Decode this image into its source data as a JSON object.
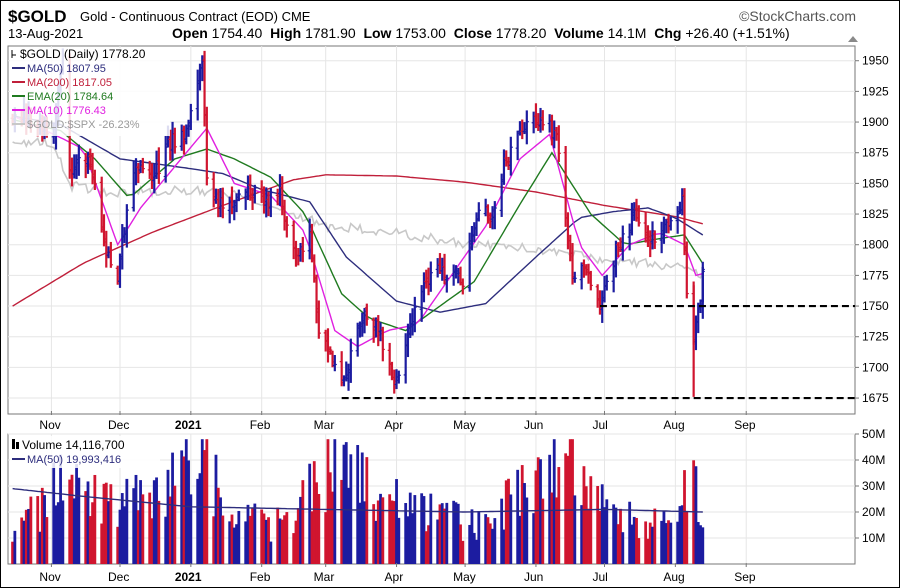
{
  "header": {
    "symbol": "$GOLD",
    "description": "Gold - Continuous Contract (EOD)",
    "exchange": "CME",
    "brand": "©StockCharts.com",
    "date": "13-Aug-2021",
    "open_label": "Open",
    "open": "1754.40",
    "high_label": "High",
    "high": "1781.90",
    "low_label": "Low",
    "low": "1753.00",
    "close_label": "Close",
    "close": "1778.20",
    "volume_label": "Volume",
    "volume": "14.1M",
    "chg_label": "Chg",
    "chg": "+26.40 (+1.51%)"
  },
  "legend": {
    "price": "$GOLD (Daily) 1778.20",
    "ma50": "MA(50) 1807.95",
    "ma200": "MA(200) 1817.05",
    "ema20": "EMA(20) 1784.64",
    "ma10": "MA(10) 1776.43",
    "ratio": "$GOLD:$SPX -26.23%",
    "volume": "Volume 14,116,700",
    "vol_ma50": "MA(50) 19,993,416"
  },
  "colors": {
    "up": "#1c1ca0",
    "down": "#d0152f",
    "ma50": "#2d2d7d",
    "ma200": "#c01f3a",
    "ema20": "#1f7a1f",
    "ma10": "#e020e0",
    "ratio": "#c8c8c8"
  },
  "chart_data": [
    {
      "type": "line",
      "title": "$GOLD (Daily)",
      "x_axis": {
        "tick_labels": [
          "Nov",
          "Dec",
          "2021",
          "Feb",
          "Mar",
          "Apr",
          "May",
          "Jun",
          "Jul",
          "Aug",
          "Sep"
        ]
      },
      "y_axis": {
        "ticks": [
          1675,
          1700,
          1725,
          1750,
          1775,
          1800,
          1825,
          1850,
          1875,
          1900,
          1925,
          1950
        ],
        "range": [
          1662,
          1962
        ]
      },
      "series": [
        {
          "name": "$GOLD (Daily)",
          "style": "bars",
          "anchors": [
            [
              "2020-10-15",
              1905
            ],
            [
              "2020-10-22",
              1905
            ],
            [
              "2020-11-02",
              1890
            ],
            [
              "2020-11-06",
              1950
            ],
            [
              "2020-11-09",
              1860
            ],
            [
              "2020-11-18",
              1870
            ],
            [
              "2020-11-24",
              1800
            ],
            [
              "2020-11-30",
              1776
            ],
            [
              "2020-12-07",
              1865
            ],
            [
              "2020-12-16",
              1855
            ],
            [
              "2020-12-21",
              1880
            ],
            [
              "2020-12-31",
              1893
            ],
            [
              "2021-01-06",
              1953
            ],
            [
              "2021-01-08",
              1850
            ],
            [
              "2021-01-15",
              1830
            ],
            [
              "2021-01-27",
              1845
            ],
            [
              "2021-02-04",
              1835
            ],
            [
              "2021-02-09",
              1840
            ],
            [
              "2021-02-16",
              1792
            ],
            [
              "2021-02-22",
              1808
            ],
            [
              "2021-02-26",
              1730
            ],
            [
              "2021-03-05",
              1698
            ],
            [
              "2021-03-08",
              1683
            ],
            [
              "2021-03-15",
              1730
            ],
            [
              "2021-03-19",
              1745
            ],
            [
              "2021-03-24",
              1730
            ],
            [
              "2021-03-31",
              1685
            ],
            [
              "2021-04-09",
              1745
            ],
            [
              "2021-04-16",
              1775
            ],
            [
              "2021-04-26",
              1780
            ],
            [
              "2021-04-30",
              1768
            ],
            [
              "2021-05-07",
              1830
            ],
            [
              "2021-05-12",
              1820
            ],
            [
              "2021-05-18",
              1865
            ],
            [
              "2021-05-26",
              1898
            ],
            [
              "2021-06-01",
              1903
            ],
            [
              "2021-06-10",
              1890
            ],
            [
              "2021-06-17",
              1775
            ],
            [
              "2021-06-22",
              1778
            ],
            [
              "2021-06-29",
              1752
            ],
            [
              "2021-07-06",
              1795
            ],
            [
              "2021-07-15",
              1828
            ],
            [
              "2021-07-21",
              1803
            ],
            [
              "2021-07-30",
              1815
            ],
            [
              "2021-08-04",
              1835
            ],
            [
              "2021-08-06",
              1762
            ],
            [
              "2021-08-09",
              1728
            ],
            [
              "2021-08-12",
              1752
            ],
            [
              "2021-08-13",
              1778.2
            ]
          ]
        },
        {
          "name": "MA(50)",
          "anchors": [
            [
              "2020-10-15",
              1905
            ],
            [
              "2020-11-05",
              1898
            ],
            [
              "2020-12-01",
              1870
            ],
            [
              "2021-01-01",
              1862
            ],
            [
              "2021-01-15",
              1858
            ],
            [
              "2021-02-01",
              1845
            ],
            [
              "2021-02-22",
              1835
            ],
            [
              "2021-03-10",
              1790
            ],
            [
              "2021-04-01",
              1754
            ],
            [
              "2021-04-20",
              1745
            ],
            [
              "2021-05-10",
              1752
            ],
            [
              "2021-06-01",
              1790
            ],
            [
              "2021-06-20",
              1822
            ],
            [
              "2021-07-05",
              1827
            ],
            [
              "2021-07-20",
              1830
            ],
            [
              "2021-08-01",
              1822
            ],
            [
              "2021-08-13",
              1807.95
            ]
          ]
        },
        {
          "name": "MA(200)",
          "anchors": [
            [
              "2020-10-15",
              1750
            ],
            [
              "2020-11-15",
              1785
            ],
            [
              "2020-12-15",
              1810
            ],
            [
              "2021-01-15",
              1832
            ],
            [
              "2021-02-15",
              1853
            ],
            [
              "2021-03-01",
              1857
            ],
            [
              "2021-04-01",
              1856
            ],
            [
              "2021-05-01",
              1851
            ],
            [
              "2021-06-01",
              1843
            ],
            [
              "2021-07-01",
              1832
            ],
            [
              "2021-08-01",
              1823
            ],
            [
              "2021-08-13",
              1817.05
            ]
          ]
        },
        {
          "name": "EMA(20)",
          "anchors": [
            [
              "2020-10-15",
              1902
            ],
            [
              "2020-11-05",
              1893
            ],
            [
              "2020-11-20",
              1870
            ],
            [
              "2020-12-05",
              1838
            ],
            [
              "2020-12-25",
              1870
            ],
            [
              "2021-01-08",
              1878
            ],
            [
              "2021-01-20",
              1870
            ],
            [
              "2021-02-05",
              1855
            ],
            [
              "2021-02-20",
              1825
            ],
            [
              "2021-03-08",
              1760
            ],
            [
              "2021-03-20",
              1740
            ],
            [
              "2021-04-05",
              1730
            ],
            [
              "2021-04-20",
              1750
            ],
            [
              "2021-05-05",
              1770
            ],
            [
              "2021-05-25",
              1833
            ],
            [
              "2021-06-08",
              1875
            ],
            [
              "2021-06-25",
              1825
            ],
            [
              "2021-07-10",
              1800
            ],
            [
              "2021-07-25",
              1805
            ],
            [
              "2021-08-05",
              1808
            ],
            [
              "2021-08-13",
              1784.64
            ]
          ]
        },
        {
          "name": "MA(10)",
          "anchors": [
            [
              "2020-10-15",
              1905
            ],
            [
              "2020-11-02",
              1890
            ],
            [
              "2020-11-15",
              1878
            ],
            [
              "2020-11-30",
              1800
            ],
            [
              "2020-12-10",
              1830
            ],
            [
              "2020-12-30",
              1875
            ],
            [
              "2021-01-08",
              1895
            ],
            [
              "2021-01-20",
              1850
            ],
            [
              "2021-02-05",
              1840
            ],
            [
              "2021-02-20",
              1810
            ],
            [
              "2021-03-05",
              1730
            ],
            [
              "2021-03-15",
              1717
            ],
            [
              "2021-03-28",
              1730
            ],
            [
              "2021-04-10",
              1735
            ],
            [
              "2021-04-25",
              1775
            ],
            [
              "2021-05-10",
              1815
            ],
            [
              "2021-05-25",
              1870
            ],
            [
              "2021-06-07",
              1890
            ],
            [
              "2021-06-20",
              1800
            ],
            [
              "2021-06-30",
              1775
            ],
            [
              "2021-07-12",
              1800
            ],
            [
              "2021-07-25",
              1810
            ],
            [
              "2021-08-05",
              1800
            ],
            [
              "2021-08-10",
              1775
            ],
            [
              "2021-08-13",
              1776.43
            ]
          ]
        },
        {
          "name": "$GOLD:$SPX",
          "anchors": [
            [
              "2020-10-15",
              1880
            ],
            [
              "2020-11-01",
              1885
            ],
            [
              "2020-11-10",
              1848
            ],
            [
              "2020-12-01",
              1842
            ],
            [
              "2021-01-01",
              1845
            ],
            [
              "2021-01-20",
              1840
            ],
            [
              "2021-02-10",
              1830
            ],
            [
              "2021-03-01",
              1815
            ],
            [
              "2021-04-01",
              1810
            ],
            [
              "2021-05-01",
              1800
            ],
            [
              "2021-06-01",
              1797
            ],
            [
              "2021-07-01",
              1788
            ],
            [
              "2021-08-01",
              1782
            ],
            [
              "2021-08-13",
              1775
            ]
          ]
        }
      ],
      "reference_lines": [
        {
          "y": 1750,
          "from": "2021-06-29",
          "to": "2021-09-30",
          "style": "dashed"
        },
        {
          "y": 1675,
          "from": "2021-03-08",
          "to": "2021-09-30",
          "style": "dashed"
        }
      ]
    },
    {
      "type": "bar",
      "title": "Volume",
      "y_axis": {
        "ticks": [
          "10M",
          "20M",
          "30M",
          "40M",
          "50M"
        ],
        "values": [
          10,
          20,
          30,
          40,
          50
        ],
        "range": [
          0,
          50
        ]
      },
      "series": [
        {
          "name": "Volume",
          "units": "M",
          "anchors": [
            [
              "2020-10-15",
              12
            ],
            [
              "2020-11-09",
              33
            ],
            [
              "2020-11-20",
              28
            ],
            [
              "2020-12-15",
              22
            ],
            [
              "2021-01-08",
              44
            ],
            [
              "2021-01-15",
              18
            ],
            [
              "2021-02-10",
              15
            ],
            [
              "2021-03-05",
              38
            ],
            [
              "2021-04-01",
              26
            ],
            [
              "2021-04-20",
              18
            ],
            [
              "2021-05-05",
              15
            ],
            [
              "2021-06-01",
              30
            ],
            [
              "2021-06-17",
              42
            ],
            [
              "2021-06-25",
              25
            ],
            [
              "2021-07-15",
              18
            ],
            [
              "2021-08-01",
              14
            ],
            [
              "2021-08-09",
              38
            ],
            [
              "2021-08-13",
              14.1
            ]
          ]
        },
        {
          "name": "MA(50)",
          "units": "M",
          "anchors": [
            [
              "2020-10-15",
              29
            ],
            [
              "2020-11-15",
              26
            ],
            [
              "2021-01-01",
              22
            ],
            [
              "2021-03-01",
              21
            ],
            [
              "2021-05-01",
              20
            ],
            [
              "2021-07-01",
              21
            ],
            [
              "2021-08-13",
              20
            ]
          ]
        }
      ]
    }
  ]
}
